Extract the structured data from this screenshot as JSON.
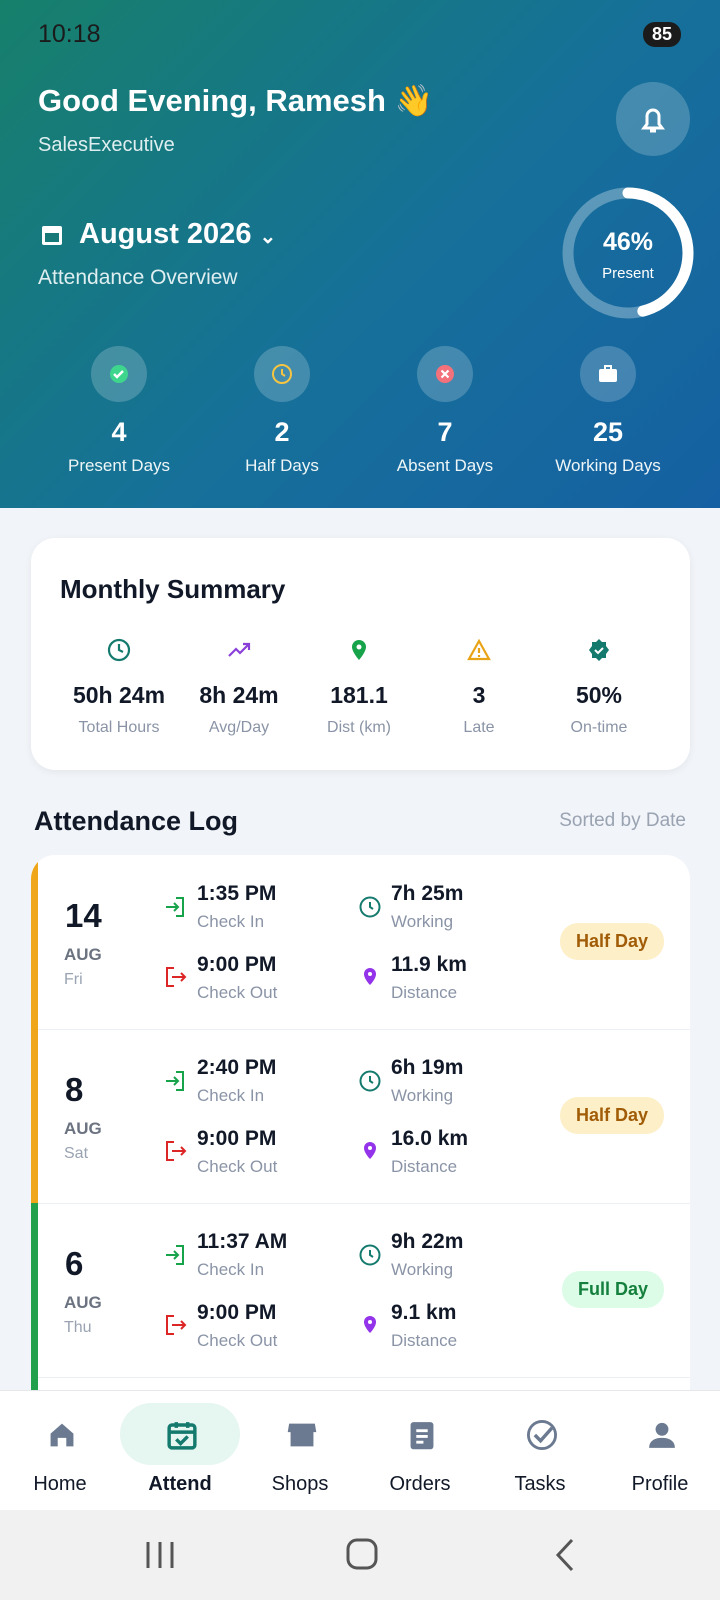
{
  "status_bar": {
    "time": "10:18",
    "battery": "85"
  },
  "header": {
    "greeting": "Good Evening, Ramesh 👋",
    "role": "SalesExecutive",
    "month": "August 2026",
    "subtitle": "Attendance Overview",
    "present_ring": {
      "value": 46,
      "label": "46%"
    },
    "present_caption": "Present",
    "stats": [
      {
        "value": 4,
        "label": "Present Days"
      },
      {
        "value": 2,
        "label": "Half Days"
      },
      {
        "value": 7,
        "label": "Absent Days"
      },
      {
        "value": 25,
        "label": "Working Days"
      }
    ]
  },
  "summary": {
    "title": "Monthly Summary",
    "items": [
      {
        "value": "50h 24m",
        "label": "Total Hours"
      },
      {
        "value": "8h 24m",
        "label": "Avg/Day"
      },
      {
        "value": "181.1",
        "label": "Dist (km)"
      },
      {
        "value": "3",
        "label": "Late"
      },
      {
        "value": "50%",
        "label": "On-time"
      }
    ]
  },
  "log": {
    "title": "Attendance Log",
    "sort": "Sorted by Date",
    "entries": [
      {
        "day": 14,
        "month": "AUG",
        "weekday": "Fri",
        "check_in": "1:35 PM",
        "check_in_label": "Check In",
        "check_out": "9:00 PM",
        "check_out_label": "Check Out",
        "working": "7h 25m",
        "working_label": "Working",
        "distance": "11.9 km",
        "distance_label": "Distance",
        "status": "Half Day"
      },
      {
        "day": 8,
        "month": "AUG",
        "weekday": "Sat",
        "check_in": "2:40 PM",
        "check_in_label": "Check In",
        "check_out": "9:00 PM",
        "check_out_label": "Check Out",
        "working": "6h 19m",
        "working_label": "Working",
        "distance": "16.0 km",
        "distance_label": "Distance",
        "status": "Half Day"
      },
      {
        "day": 6,
        "month": "AUG",
        "weekday": "Thu",
        "check_in": "11:37 AM",
        "check_in_label": "Check In",
        "check_out": "9:00 PM",
        "check_out_label": "Check Out",
        "working": "9h 22m",
        "working_label": "Working",
        "distance": "9.1 km",
        "distance_label": "Distance",
        "status": "Full Day"
      }
    ]
  },
  "nav": {
    "items": [
      "Home",
      "Attend",
      "Shops",
      "Orders",
      "Tasks",
      "Profile"
    ]
  }
}
